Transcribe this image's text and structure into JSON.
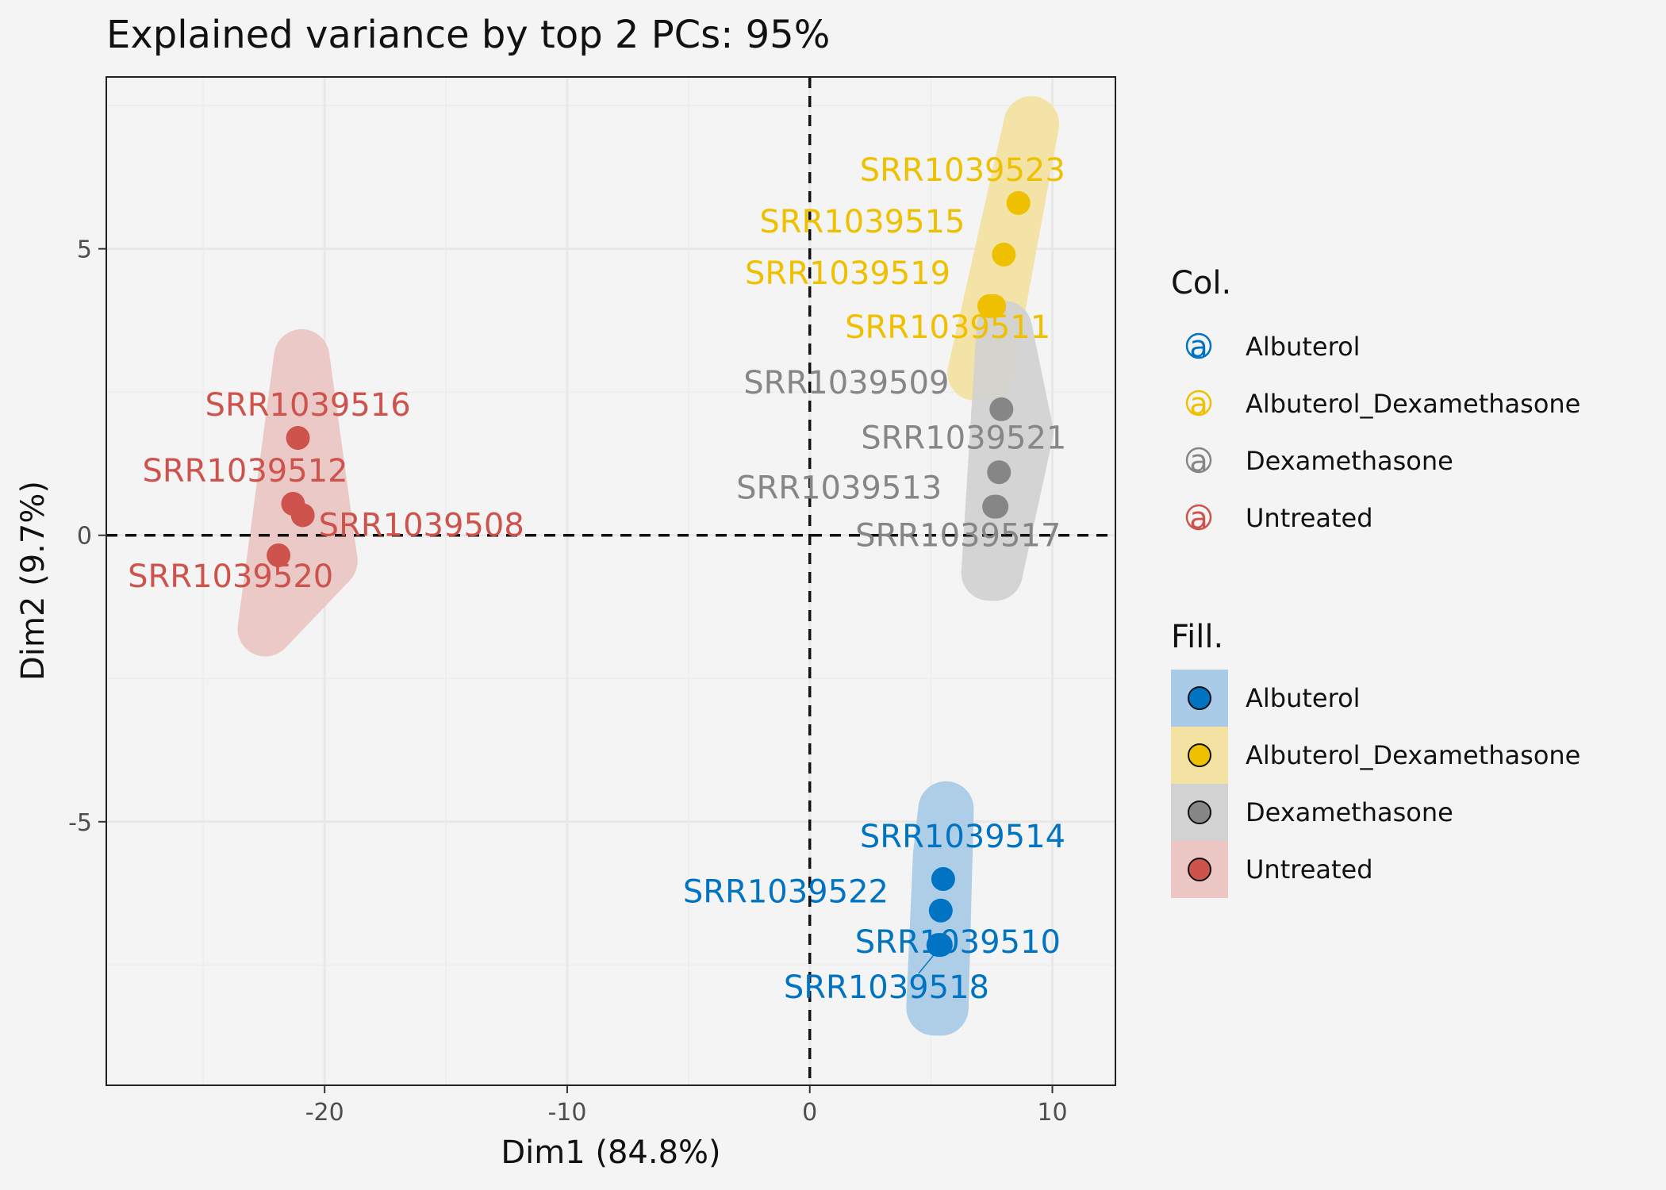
{
  "chart_data": {
    "type": "scatter",
    "title": "Explained variance by top 2 PCs: 95%",
    "xlabel": "Dim1 (84.8%)",
    "ylabel": "Dim2 (9.7%)",
    "xlim": [
      -29,
      12.6
    ],
    "ylim": [
      -9.6,
      8.0
    ],
    "x_ticks": [
      -20,
      -10,
      0,
      10
    ],
    "y_ticks": [
      -5,
      0,
      5
    ],
    "grid": true,
    "reference_lines": {
      "x": 0,
      "y": 0
    },
    "legend_placement": "right",
    "groups": [
      {
        "name": "Albuterol",
        "color": "#0073C2",
        "fill": "#a9cbe8"
      },
      {
        "name": "Albuterol_Dexamethasone",
        "color": "#EFC000",
        "fill": "#f3e2a1"
      },
      {
        "name": "Dexamethasone",
        "color": "#868686",
        "fill": "#d2d2d2"
      },
      {
        "name": "Untreated",
        "color": "#CD534C",
        "fill": "#ebc6c4"
      }
    ],
    "points": [
      {
        "label": "SRR1039523",
        "group": "Albuterol_Dexamethasone",
        "x": 8.6,
        "y": 5.8
      },
      {
        "label": "SRR1039515",
        "group": "Albuterol_Dexamethasone",
        "x": 8.0,
        "y": 4.9
      },
      {
        "label": "SRR1039519",
        "group": "Albuterol_Dexamethasone",
        "x": 7.4,
        "y": 4.0
      },
      {
        "label": "SRR1039511",
        "group": "Albuterol_Dexamethasone",
        "x": 7.6,
        "y": 4.0
      },
      {
        "label": "SRR1039509",
        "group": "Dexamethasone",
        "x": 7.9,
        "y": 2.2
      },
      {
        "label": "SRR1039521",
        "group": "Dexamethasone",
        "x": 7.8,
        "y": 1.1
      },
      {
        "label": "SRR1039513",
        "group": "Dexamethasone",
        "x": 7.6,
        "y": 0.5
      },
      {
        "label": "SRR1039517",
        "group": "Dexamethasone",
        "x": 7.7,
        "y": 0.5
      },
      {
        "label": "SRR1039516",
        "group": "Untreated",
        "x": -21.1,
        "y": 1.7
      },
      {
        "label": "SRR1039512",
        "group": "Untreated",
        "x": -21.3,
        "y": 0.55
      },
      {
        "label": "SRR1039508",
        "group": "Untreated",
        "x": -20.9,
        "y": 0.35
      },
      {
        "label": "SRR1039520",
        "group": "Untreated",
        "x": -21.9,
        "y": -0.35
      },
      {
        "label": "SRR1039514",
        "group": "Albuterol",
        "x": 5.5,
        "y": -6.0
      },
      {
        "label": "SRR1039522",
        "group": "Albuterol",
        "x": 5.4,
        "y": -6.55
      },
      {
        "label": "SRR1039510",
        "group": "Albuterol",
        "x": 5.3,
        "y": -7.15
      },
      {
        "label": "SRR1039518",
        "group": "Albuterol",
        "x": 5.4,
        "y": -7.15
      }
    ],
    "legend": {
      "color_title": "Col.",
      "fill_title": "Fill.",
      "color_key_glyph": "a",
      "entries": [
        "Albuterol",
        "Albuterol_Dexamethasone",
        "Dexamethasone",
        "Untreated"
      ]
    }
  }
}
